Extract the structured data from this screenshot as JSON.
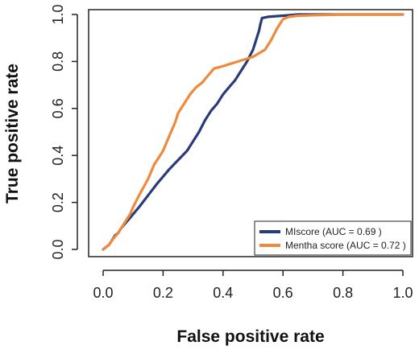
{
  "chart_data": {
    "type": "line",
    "title": "",
    "xlabel": "False positive rate",
    "ylabel": "True positive rate",
    "xlim": [
      0,
      1
    ],
    "ylim": [
      0,
      1
    ],
    "xticks": [
      "0.0",
      "0.2",
      "0.4",
      "0.6",
      "0.8",
      "1.0"
    ],
    "yticks": [
      "0.0",
      "0.2",
      "0.4",
      "0.6",
      "0.8",
      "1.0"
    ],
    "grid": false,
    "legend_position": "bottom-right",
    "series": [
      {
        "name": "MIscore (AUC = 0.69 )",
        "color": "#283c78",
        "x": [
          0,
          0.01,
          0.02,
          0.03,
          0.04,
          0.05,
          0.06,
          0.08,
          0.1,
          0.12,
          0.15,
          0.18,
          0.2,
          0.22,
          0.25,
          0.28,
          0.3,
          0.32,
          0.34,
          0.36,
          0.38,
          0.4,
          0.42,
          0.44,
          0.46,
          0.48,
          0.5,
          0.51,
          0.52,
          0.525,
          0.53,
          0.55,
          0.6,
          0.65,
          0.7,
          0.8,
          0.9,
          1.0
        ],
        "y": [
          0,
          0.01,
          0.02,
          0.04,
          0.06,
          0.07,
          0.09,
          0.12,
          0.15,
          0.18,
          0.23,
          0.28,
          0.31,
          0.34,
          0.38,
          0.42,
          0.46,
          0.5,
          0.55,
          0.59,
          0.62,
          0.66,
          0.69,
          0.72,
          0.76,
          0.8,
          0.85,
          0.89,
          0.93,
          0.96,
          0.985,
          0.99,
          0.995,
          1.0,
          1.0,
          1.0,
          1.0,
          1.0
        ]
      },
      {
        "name": "Mentha score (AUC = 0.72 )",
        "color": "#ee8a3c",
        "x": [
          0,
          0.01,
          0.02,
          0.03,
          0.05,
          0.07,
          0.09,
          0.1,
          0.12,
          0.15,
          0.17,
          0.2,
          0.22,
          0.24,
          0.25,
          0.27,
          0.29,
          0.31,
          0.33,
          0.35,
          0.37,
          0.4,
          0.45,
          0.5,
          0.54,
          0.56,
          0.58,
          0.6,
          0.62,
          0.65,
          0.7,
          0.8,
          0.9,
          1.0
        ],
        "y": [
          0,
          0.01,
          0.02,
          0.04,
          0.07,
          0.11,
          0.15,
          0.18,
          0.23,
          0.3,
          0.36,
          0.42,
          0.48,
          0.54,
          0.58,
          0.62,
          0.66,
          0.69,
          0.71,
          0.74,
          0.77,
          0.78,
          0.8,
          0.82,
          0.85,
          0.89,
          0.94,
          0.98,
          0.99,
          0.995,
          0.997,
          1.0,
          1.0,
          1.0
        ]
      }
    ]
  }
}
